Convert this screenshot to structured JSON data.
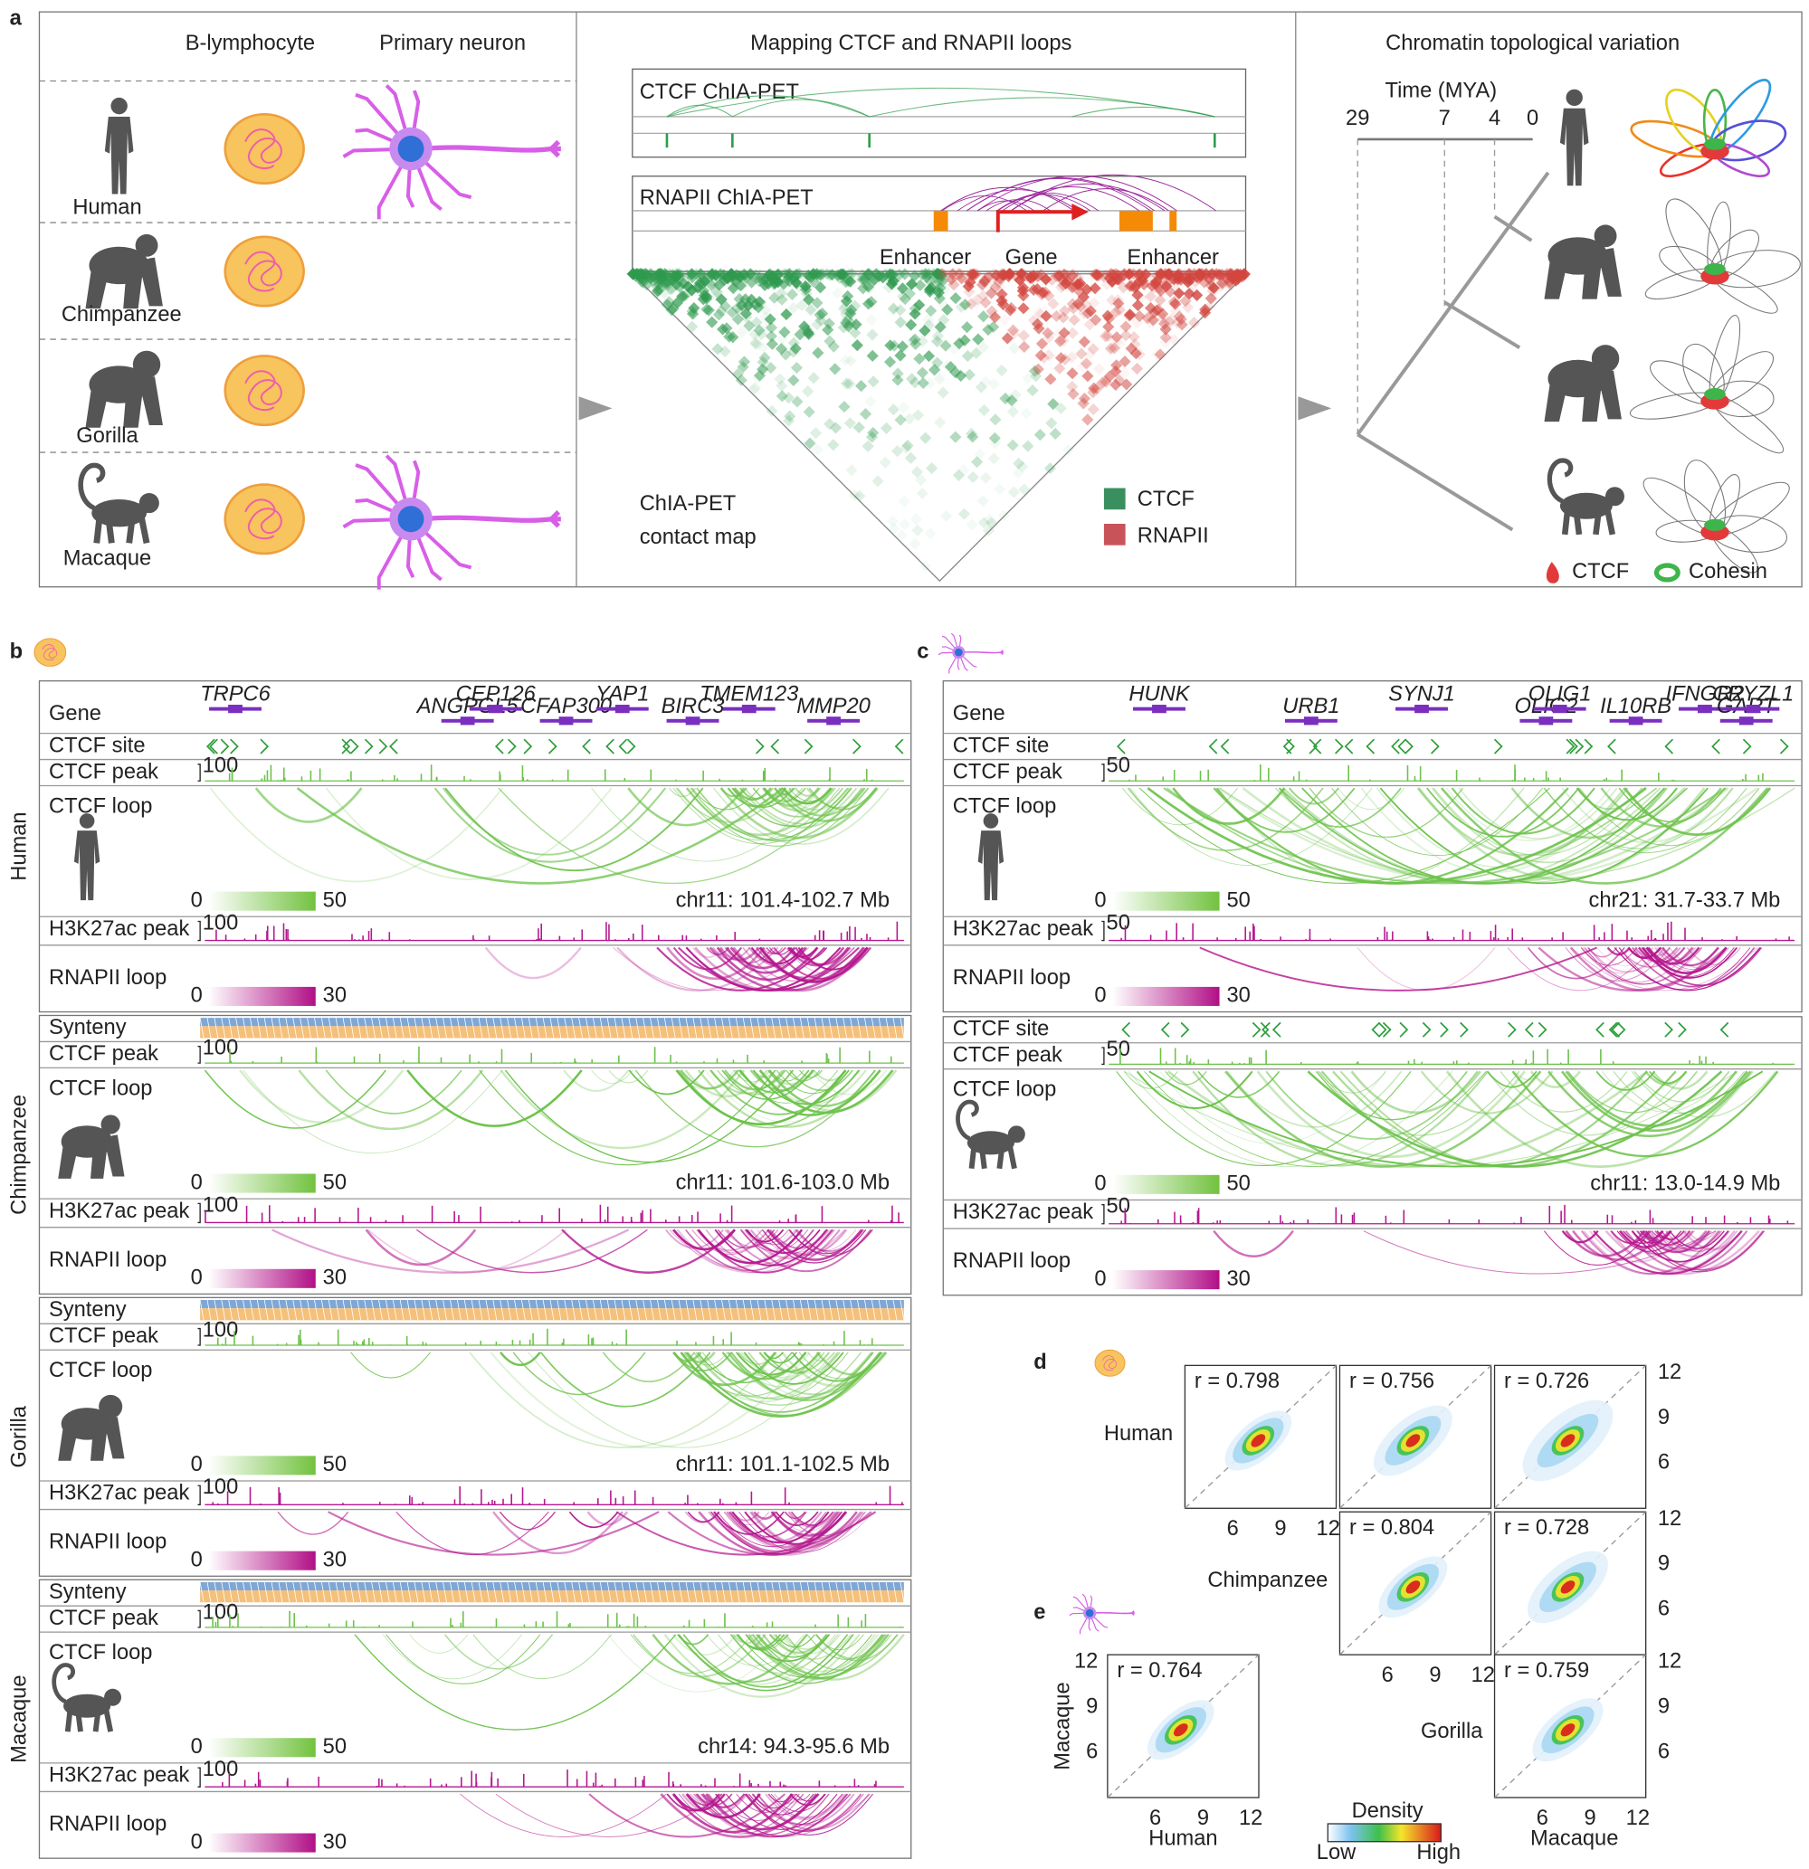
{
  "panel_a": {
    "label": "a",
    "cell_types": [
      "B-lymphocyte",
      "Primary neuron"
    ],
    "species": [
      "Human",
      "Chimpanzee",
      "Gorilla",
      "Macaque"
    ],
    "mapping": {
      "title": "Mapping CTCF and RNAPII loops",
      "ctcf_track": "CTCF ChIA-PET",
      "rnapii_track": "RNAPII ChIA-PET",
      "features": [
        "Enhancer",
        "Gene",
        "Enhancer"
      ],
      "contact_map": [
        "ChIA-PET",
        "contact map"
      ],
      "legend": [
        "CTCF",
        "RNAPII"
      ]
    },
    "variation": {
      "title": "Chromatin topological variation",
      "time_label": "Time (MYA)",
      "time_ticks": [
        29,
        7,
        4,
        0
      ],
      "legend": [
        "CTCF",
        "Cohesin"
      ]
    }
  },
  "panel_b": {
    "label": "b",
    "blocks": [
      {
        "species": "Human",
        "gene_track": {
          "label": "Gene",
          "genes": [
            "TRPC6",
            "ANGPGL5",
            "CEP126",
            "CFAP300",
            "YAP1",
            "BIRC3",
            "TMEM123",
            "MMP20"
          ]
        },
        "ctcf_site_track": {
          "label": "CTCF site"
        },
        "ctcf_peak_track": {
          "label": "CTCF peak",
          "max": 100
        },
        "ctcf_loop_track": {
          "label": "CTCF loop",
          "scale": [
            0,
            50
          ],
          "region": "chr11: 101.4-102.7 Mb"
        },
        "h3k27ac_track": {
          "label": "H3K27ac peak",
          "max": 100
        },
        "rnapii_loop_track": {
          "label": "RNAPII loop",
          "scale": [
            0,
            30
          ]
        }
      },
      {
        "species": "Chimpanzee",
        "synteny_track": {
          "label": "Synteny"
        },
        "ctcf_peak_track": {
          "label": "CTCF peak",
          "max": 100
        },
        "ctcf_loop_track": {
          "label": "CTCF loop",
          "scale": [
            0,
            50
          ],
          "region": "chr11: 101.6-103.0 Mb"
        },
        "h3k27ac_track": {
          "label": "H3K27ac peak",
          "max": 100
        },
        "rnapii_loop_track": {
          "label": "RNAPII loop",
          "scale": [
            0,
            30
          ]
        }
      },
      {
        "species": "Gorilla",
        "synteny_track": {
          "label": "Synteny"
        },
        "ctcf_peak_track": {
          "label": "CTCF peak",
          "max": 100
        },
        "ctcf_loop_track": {
          "label": "CTCF loop",
          "scale": [
            0,
            50
          ],
          "region": "chr11: 101.1-102.5 Mb"
        },
        "h3k27ac_track": {
          "label": "H3K27ac peak",
          "max": 100
        },
        "rnapii_loop_track": {
          "label": "RNAPII loop",
          "scale": [
            0,
            30
          ]
        }
      },
      {
        "species": "Macaque",
        "synteny_track": {
          "label": "Synteny"
        },
        "ctcf_peak_track": {
          "label": "CTCF peak",
          "max": 100
        },
        "ctcf_loop_track": {
          "label": "CTCF loop",
          "scale": [
            0,
            50
          ],
          "region": "chr14: 94.3-95.6 Mb"
        },
        "h3k27ac_track": {
          "label": "H3K27ac peak",
          "max": 100
        },
        "rnapii_loop_track": {
          "label": "RNAPII loop",
          "scale": [
            0,
            30
          ]
        }
      }
    ]
  },
  "panel_c": {
    "label": "c",
    "blocks": [
      {
        "gene_track": {
          "label": "Gene",
          "genes": [
            "HUNK",
            "URB1",
            "SYNJ1",
            "OLIG2",
            "OLIG1",
            "IL10RB",
            "IFNGR2",
            "GART",
            "CRYZL1"
          ]
        },
        "ctcf_site_track": {
          "label": "CTCF site"
        },
        "ctcf_peak_track": {
          "label": "CTCF peak",
          "max": 50
        },
        "ctcf_loop_track": {
          "label": "CTCF loop",
          "scale": [
            0,
            50
          ],
          "region": "chr21: 31.7-33.7 Mb"
        },
        "h3k27ac_track": {
          "label": "H3K27ac peak",
          "max": 50
        },
        "rnapii_loop_track": {
          "label": "RNAPII loop",
          "scale": [
            0,
            30
          ]
        }
      },
      {
        "ctcf_site_track": {
          "label": "CTCF site"
        },
        "ctcf_peak_track": {
          "label": "CTCF peak",
          "max": 50
        },
        "ctcf_loop_track": {
          "label": "CTCF loop",
          "scale": [
            0,
            50
          ],
          "region": "chr11: 13.0-14.9 Mb"
        },
        "h3k27ac_track": {
          "label": "H3K27ac peak",
          "max": 50
        },
        "rnapii_loop_track": {
          "label": "RNAPII loop",
          "scale": [
            0,
            30
          ]
        }
      }
    ]
  },
  "panel_d": {
    "label": "d",
    "rows": [
      {
        "label": "Human",
        "r": [
          "r = 0.798",
          "r = 0.756",
          "r = 0.726"
        ]
      },
      {
        "label": "Chimpanzee",
        "r": [
          "r = 0.804",
          "r = 0.728"
        ]
      },
      {
        "label": "Gorilla",
        "r": [
          "r = 0.759"
        ]
      }
    ],
    "column_label": "Macaque",
    "ticks": [
      6,
      9,
      12
    ],
    "density_legend": {
      "title": "Density",
      "low": "Low",
      "high": "High"
    }
  },
  "panel_e": {
    "label": "e",
    "r": "r = 0.764",
    "x_label": "Human",
    "y_label": "Macaque",
    "ticks": [
      6,
      9,
      12
    ]
  }
}
